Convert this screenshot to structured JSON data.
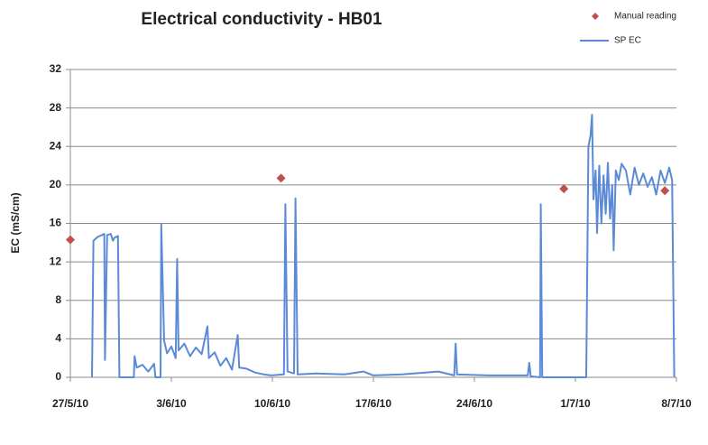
{
  "chart_data": {
    "type": "line",
    "title": "Electrical conductivity - HB01",
    "y_label": "EC (mS/cm)",
    "xlim": [
      0,
      42
    ],
    "xticks": [
      {
        "value": 0,
        "label": "27/5/10"
      },
      {
        "value": 7,
        "label": "3/6/10"
      },
      {
        "value": 14,
        "label": "10/6/10"
      },
      {
        "value": 21,
        "label": "17/6/10"
      },
      {
        "value": 28,
        "label": "24/6/10"
      },
      {
        "value": 35,
        "label": "1/7/10"
      },
      {
        "value": 42,
        "label": "8/7/10"
      }
    ],
    "ylim": [
      0,
      32
    ],
    "yticks": [
      0,
      4,
      8,
      12,
      16,
      20,
      24,
      28,
      32
    ],
    "grid": true,
    "legend": "top-right",
    "series": [
      {
        "name": "SP EC",
        "type": "line",
        "color": "#5b8bd6",
        "x": [
          1.5,
          1.6,
          1.9,
          2.2,
          2.35,
          2.4,
          2.55,
          2.8,
          2.95,
          3.05,
          3.3,
          3.4,
          4.4,
          4.45,
          4.6,
          5.0,
          5.4,
          5.8,
          5.9,
          6.25,
          6.3,
          6.5,
          6.7,
          7.0,
          7.3,
          7.4,
          7.5,
          7.9,
          8.3,
          8.7,
          9.1,
          9.5,
          9.6,
          10.0,
          10.4,
          10.8,
          11.2,
          11.6,
          11.7,
          12.2,
          12.8,
          13.4,
          13.9,
          14.8,
          14.9,
          15.05,
          15.5,
          15.6,
          15.75,
          17,
          19,
          20.3,
          21,
          23,
          25.5,
          26.6,
          26.7,
          26.8,
          29,
          31.7,
          31.8,
          31.9,
          32.55,
          32.6,
          32.7,
          35.75,
          35.9,
          36.05,
          36.15,
          36.25,
          36.4,
          36.5,
          36.65,
          36.8,
          36.95,
          37.1,
          37.25,
          37.4,
          37.55,
          37.65,
          37.8,
          38.0,
          38.2,
          38.5,
          38.8,
          39.1,
          39.4,
          39.7,
          40.0,
          40.3,
          40.6,
          40.9,
          41.2,
          41.5,
          41.7,
          41.85
        ],
        "values": [
          0,
          14.2,
          14.6,
          14.8,
          14.9,
          1.8,
          14.8,
          14.9,
          14.2,
          14.5,
          14.7,
          0,
          0,
          2.2,
          1.0,
          1.3,
          0.6,
          1.4,
          0,
          0,
          15.9,
          3.8,
          2.5,
          3.2,
          2.0,
          12.3,
          2.8,
          3.5,
          2.2,
          3.1,
          2.4,
          5.3,
          2.0,
          2.6,
          1.2,
          2.0,
          0.8,
          4.4,
          1.0,
          0.9,
          0.5,
          0.3,
          0.2,
          0.3,
          18.0,
          0.6,
          0.4,
          18.6,
          0.3,
          0.4,
          0.3,
          0.6,
          0.2,
          0.3,
          0.6,
          0.2,
          3.5,
          0.3,
          0.2,
          0.2,
          1.5,
          0.1,
          0,
          18.0,
          0,
          0,
          24.0,
          25.2,
          27.3,
          18.5,
          21.5,
          15.0,
          22.0,
          16.0,
          21.0,
          17.0,
          22.3,
          16.5,
          20.0,
          13.2,
          21.5,
          20.5,
          22.2,
          21.5,
          19.0,
          21.8,
          20.0,
          21.2,
          19.8,
          20.8,
          19.0,
          21.5,
          20.2,
          21.8,
          20.5,
          0
        ]
      },
      {
        "name": "Manual reading",
        "type": "scatter",
        "color": "#c0504d",
        "x": [
          0,
          14.6,
          34.2,
          41.2
        ],
        "values": [
          14.3,
          20.7,
          19.6,
          19.4
        ]
      }
    ]
  }
}
